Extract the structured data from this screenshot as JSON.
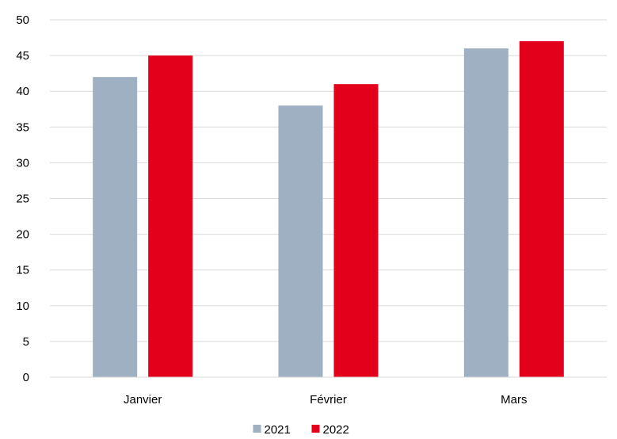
{
  "chart_data": {
    "type": "bar",
    "categories": [
      "Janvier",
      "Février",
      "Mars"
    ],
    "series": [
      {
        "name": "2021",
        "values": [
          42,
          38,
          46
        ],
        "color": "#9eb0c1"
      },
      {
        "name": "2022",
        "values": [
          45,
          41,
          47
        ],
        "color": "#e2001a"
      }
    ],
    "title": "",
    "xlabel": "",
    "ylabel": "",
    "ylim": [
      0,
      50
    ],
    "yticks": [
      0,
      5,
      10,
      15,
      20,
      25,
      30,
      35,
      40,
      45,
      50
    ],
    "grid": true,
    "gridline_color": "#d9d9d9",
    "legend": {
      "position": "bottom"
    }
  }
}
